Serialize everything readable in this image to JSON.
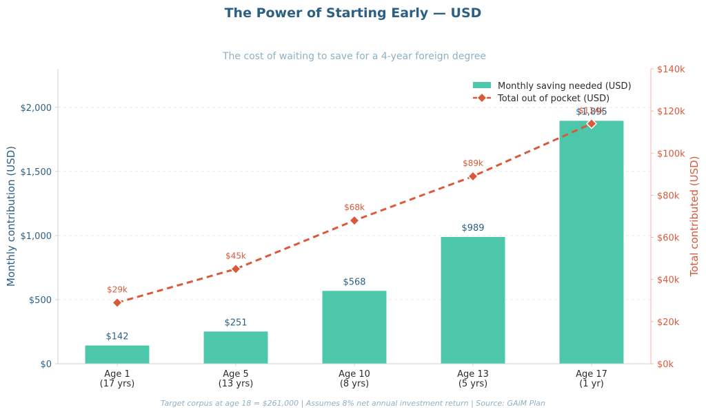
{
  "chart_data": {
    "type": "bar",
    "title": "The Power of Starting Early — USD",
    "subtitle": "The cost of waiting to save for a 4-year foreign degree",
    "categories": [
      [
        "Age 1",
        "(17 yrs)"
      ],
      [
        "Age 5",
        "(13 yrs)"
      ],
      [
        "Age 10",
        "(8 yrs)"
      ],
      [
        "Age 13",
        "(5 yrs)"
      ],
      [
        "Age 17",
        "(1 yr)"
      ]
    ],
    "ylabel": "Monthly contribution (USD)",
    "y2label": "Total contributed (USD)",
    "ylim": [
      0,
      2300
    ],
    "y2lim": [
      0,
      140000
    ],
    "y_ticks": [
      0,
      500,
      1000,
      1500,
      2000
    ],
    "y_tick_labels": [
      "$0",
      "$500",
      "$1,000",
      "$1,500",
      "$2,000"
    ],
    "y2_ticks": [
      0,
      20000,
      40000,
      60000,
      80000,
      100000,
      120000,
      140000
    ],
    "y2_tick_labels": [
      "$0k",
      "$20k",
      "$40k",
      "$60k",
      "$80k",
      "$100k",
      "$120k",
      "$140k"
    ],
    "grid": true,
    "legend_position": "top-right",
    "series": [
      {
        "name": "Monthly saving needed (USD)",
        "kind": "bar",
        "axis": "left",
        "color": "#4cc7a9",
        "values": [
          142,
          251,
          568,
          989,
          1895
        ],
        "labels": [
          "$142",
          "$251",
          "$568",
          "$989",
          "$1,895"
        ]
      },
      {
        "name": "Total out of pocket (USD)",
        "kind": "line",
        "axis": "right",
        "color": "#d9593a",
        "values": [
          29000,
          45000,
          68000,
          89000,
          114000
        ],
        "labels": [
          "$29k",
          "$45k",
          "$68k",
          "$89k",
          "$114k"
        ]
      }
    ],
    "footer": "Target corpus at age 18 = $261,000  |  Assumes 8% net annual investment return  |  Source: GAiM Plan"
  }
}
